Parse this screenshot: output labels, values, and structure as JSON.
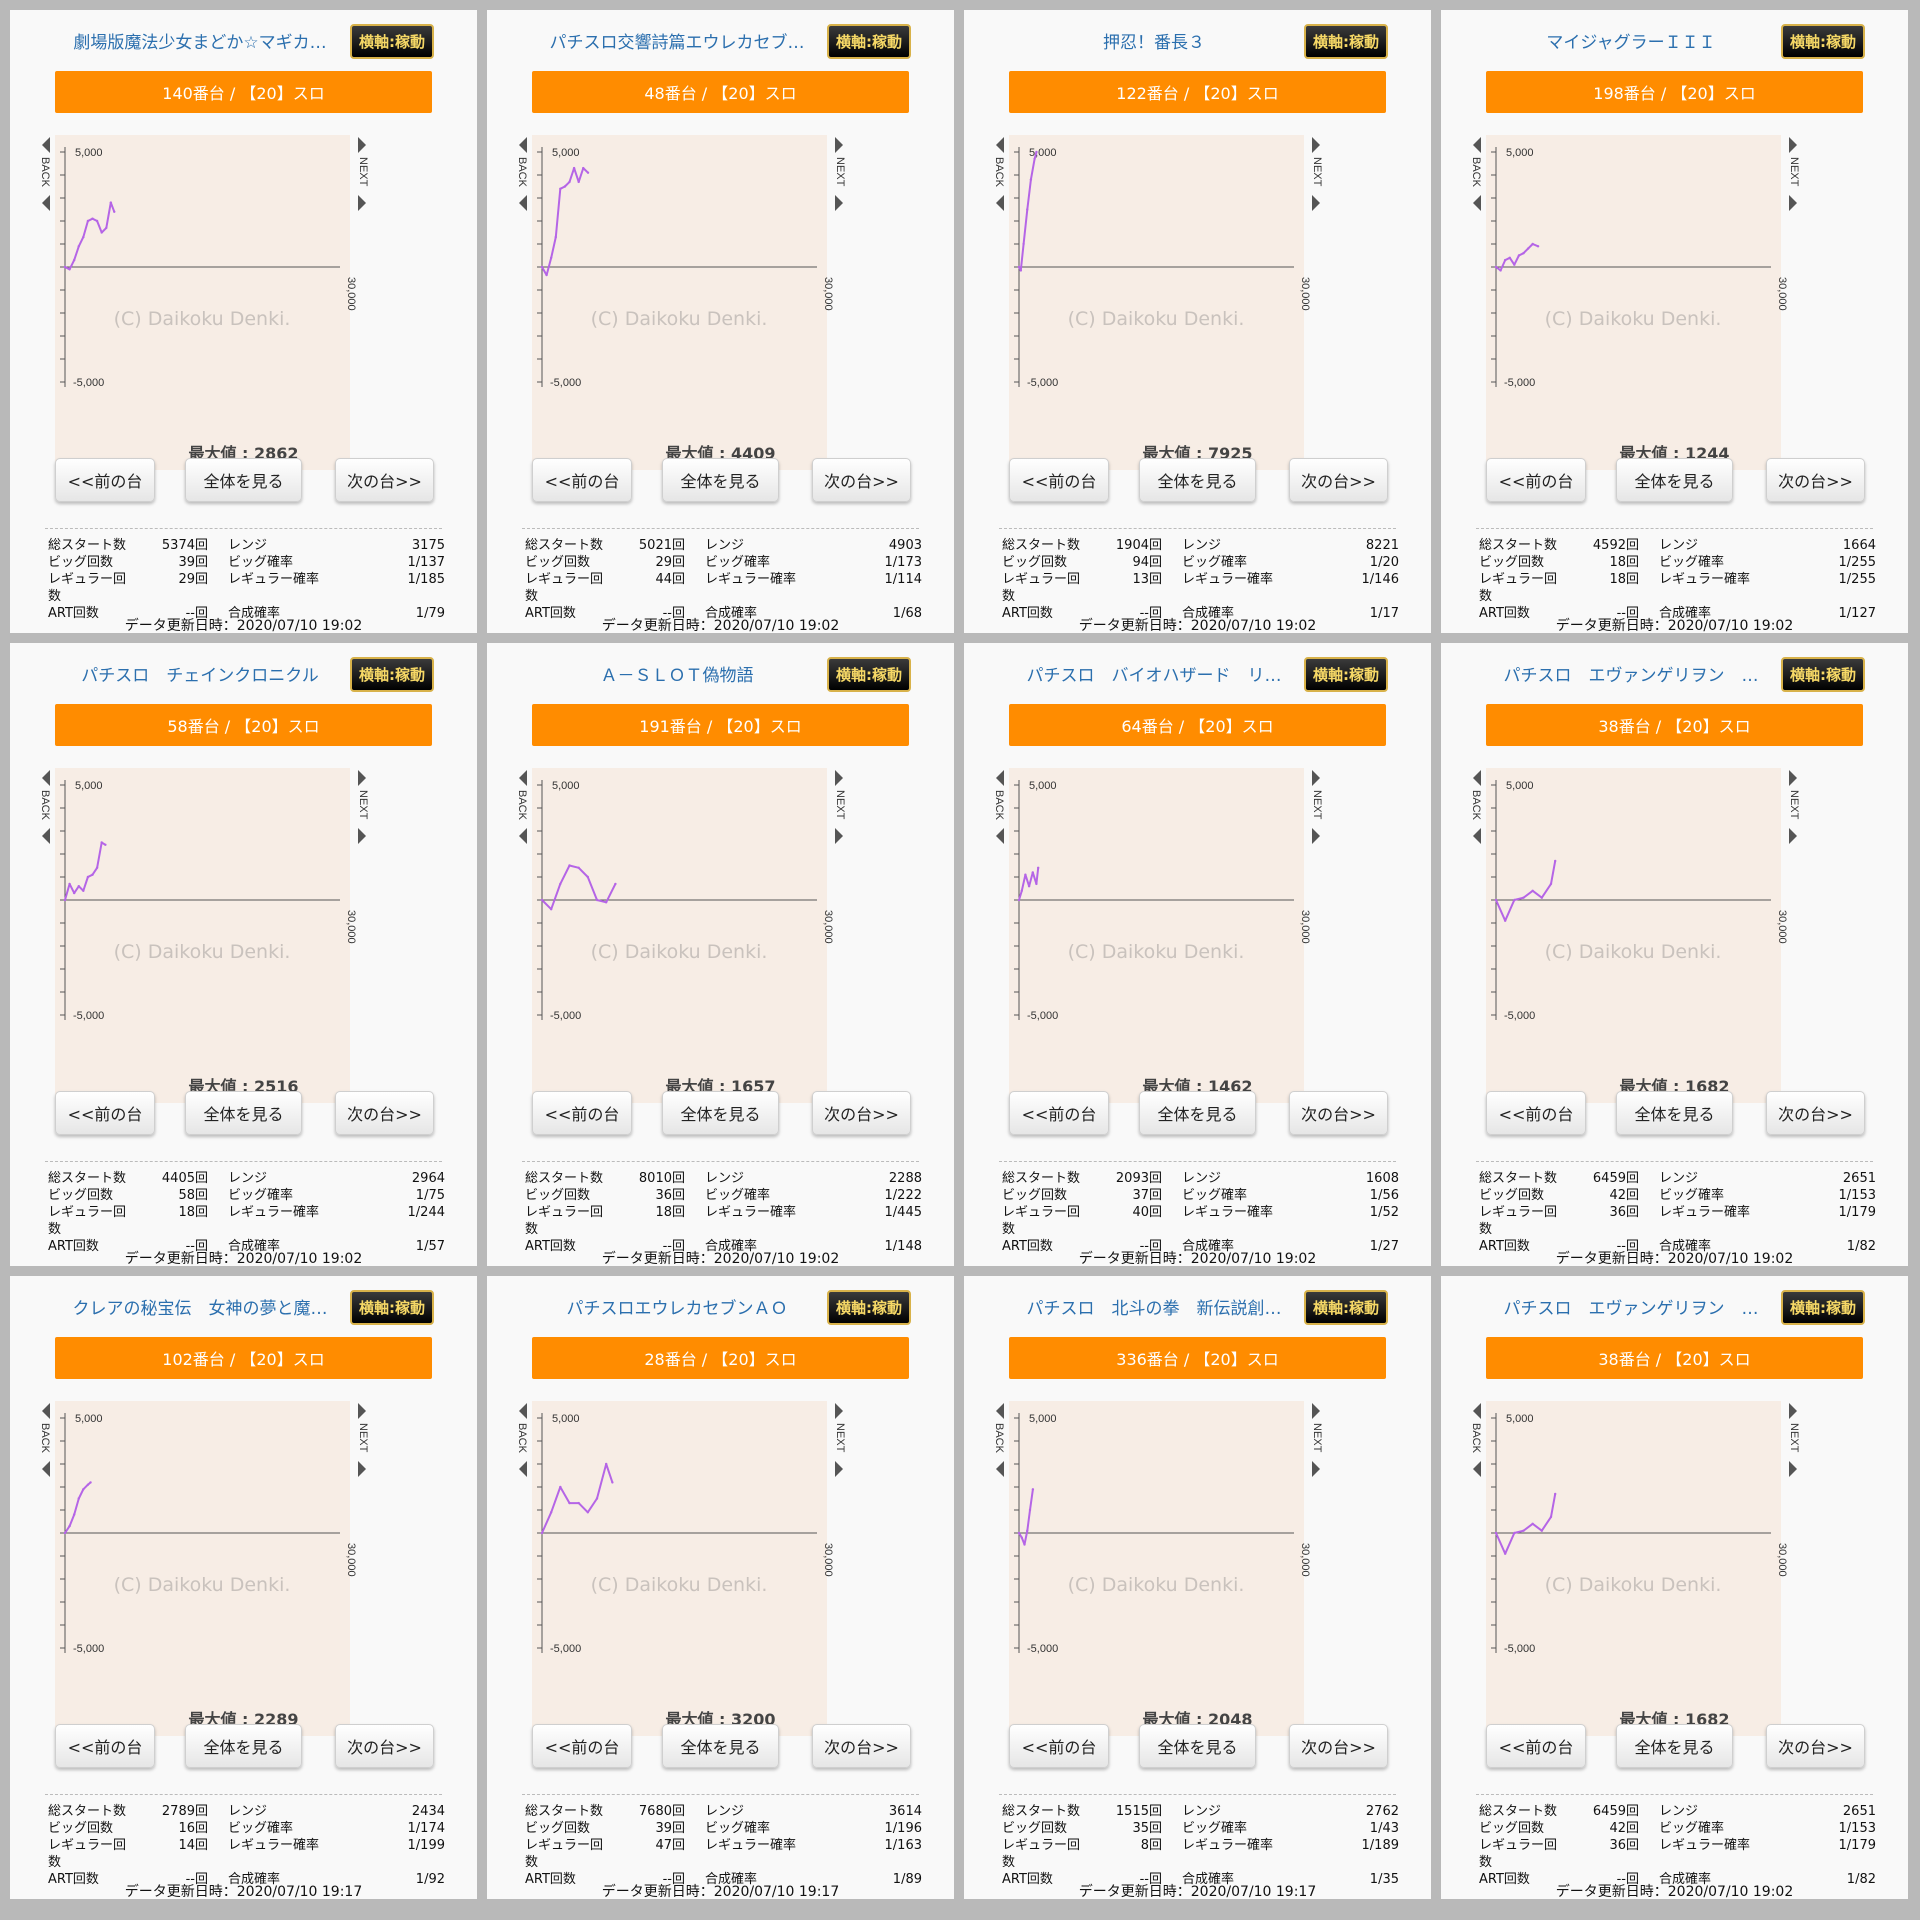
{
  "common": {
    "badge": "横軸:稼動",
    "prev_label": "<<前の台",
    "all_label": "全体を見る",
    "next_label": "次の台>>",
    "max_prefix": "最大値 : ",
    "back_label": "BACK",
    "next_side_label": "NEXT",
    "watermark": "(C) Daikoku Denki.",
    "stat_labels": {
      "total_start": "総スタート数",
      "big_count": "ビッグ回数",
      "reg_count": "レギュラー回数",
      "art_count": "ART回数",
      "range": "レンジ",
      "big_prob": "ビッグ確率",
      "reg_prob": "レギュラー確率",
      "combined_prob": "合成確率"
    },
    "updated_prefix": "データ更新日時：",
    "accent_color": "#ff8c00",
    "line_color": "#b565e6",
    "chart_bg": "#f7ede5"
  },
  "panels": [
    {
      "title": "劇場版魔法少女まどか☆マギカ…",
      "machine": "140番台 / 【20】スロ",
      "max_value": "2862",
      "stats": {
        "total_start": "5374回",
        "big_count": "39回",
        "reg_count": "29回",
        "art_count": "--回",
        "range": "3175",
        "big_prob": "1/137",
        "reg_prob": "1/185",
        "combined_prob": "1/79"
      },
      "updated": "2020/07/10 19:02"
    },
    {
      "title": "パチスロ交響詩篇エウレカセブ…",
      "machine": "48番台 / 【20】スロ",
      "max_value": "4409",
      "stats": {
        "total_start": "5021回",
        "big_count": "29回",
        "reg_count": "44回",
        "art_count": "--回",
        "range": "4903",
        "big_prob": "1/173",
        "reg_prob": "1/114",
        "combined_prob": "1/68"
      },
      "updated": "2020/07/10 19:02"
    },
    {
      "title": "押忍！番長３",
      "machine": "122番台 / 【20】スロ",
      "max_value": "7925",
      "stats": {
        "total_start": "1904回",
        "big_count": "94回",
        "reg_count": "13回",
        "art_count": "--回",
        "range": "8221",
        "big_prob": "1/20",
        "reg_prob": "1/146",
        "combined_prob": "1/17"
      },
      "updated": "2020/07/10 19:02"
    },
    {
      "title": "マイジャグラーＩＩＩ",
      "machine": "198番台 / 【20】スロ",
      "max_value": "1244",
      "stats": {
        "total_start": "4592回",
        "big_count": "18回",
        "reg_count": "18回",
        "art_count": "--回",
        "range": "1664",
        "big_prob": "1/255",
        "reg_prob": "1/255",
        "combined_prob": "1/127"
      },
      "updated": "2020/07/10 19:02"
    },
    {
      "title": "パチスロ　チェインクロニクル",
      "machine": "58番台 / 【20】スロ",
      "max_value": "2516",
      "stats": {
        "total_start": "4405回",
        "big_count": "58回",
        "reg_count": "18回",
        "art_count": "--回",
        "range": "2964",
        "big_prob": "1/75",
        "reg_prob": "1/244",
        "combined_prob": "1/57"
      },
      "updated": "2020/07/10 19:02"
    },
    {
      "title": "Ａ－ＳＬＯＴ偽物語",
      "machine": "191番台 / 【20】スロ",
      "max_value": "1657",
      "stats": {
        "total_start": "8010回",
        "big_count": "36回",
        "reg_count": "18回",
        "art_count": "--回",
        "range": "2288",
        "big_prob": "1/222",
        "reg_prob": "1/445",
        "combined_prob": "1/148"
      },
      "updated": "2020/07/10 19:02"
    },
    {
      "title": "パチスロ　バイオハザード　リ…",
      "machine": "64番台 / 【20】スロ",
      "max_value": "1462",
      "stats": {
        "total_start": "2093回",
        "big_count": "37回",
        "reg_count": "40回",
        "art_count": "--回",
        "range": "1608",
        "big_prob": "1/56",
        "reg_prob": "1/52",
        "combined_prob": "1/27"
      },
      "updated": "2020/07/10 19:02"
    },
    {
      "title": "パチスロ　エヴァンゲリヲン　…",
      "machine": "38番台 / 【20】スロ",
      "max_value": "1682",
      "stats": {
        "total_start": "6459回",
        "big_count": "42回",
        "reg_count": "36回",
        "art_count": "--回",
        "range": "2651",
        "big_prob": "1/153",
        "reg_prob": "1/179",
        "combined_prob": "1/82"
      },
      "updated": "2020/07/10 19:02"
    },
    {
      "title": "クレアの秘宝伝　女神の夢と魔…",
      "machine": "102番台 / 【20】スロ",
      "max_value": "2289",
      "stats": {
        "total_start": "2789回",
        "big_count": "16回",
        "reg_count": "14回",
        "art_count": "--回",
        "range": "2434",
        "big_prob": "1/174",
        "reg_prob": "1/199",
        "combined_prob": "1/92"
      },
      "updated": "2020/07/10 19:17"
    },
    {
      "title": "パチスロエウレカセブンＡＯ",
      "machine": "28番台 / 【20】スロ",
      "max_value": "3200",
      "stats": {
        "total_start": "7680回",
        "big_count": "39回",
        "reg_count": "47回",
        "art_count": "--回",
        "range": "3614",
        "big_prob": "1/196",
        "reg_prob": "1/163",
        "combined_prob": "1/89"
      },
      "updated": "2020/07/10 19:17"
    },
    {
      "title": "パチスロ　北斗の拳　新伝説創…",
      "machine": "336番台 / 【20】スロ",
      "max_value": "2048",
      "stats": {
        "total_start": "1515回",
        "big_count": "35回",
        "reg_count": "8回",
        "art_count": "--回",
        "range": "2762",
        "big_prob": "1/43",
        "reg_prob": "1/189",
        "combined_prob": "1/35"
      },
      "updated": "2020/07/10 19:17"
    },
    {
      "title": "パチスロ　エヴァンゲリヲン　…",
      "machine": "38番台 / 【20】スロ",
      "max_value": "1682",
      "stats": {
        "total_start": "6459回",
        "big_count": "42回",
        "reg_count": "36回",
        "art_count": "--回",
        "range": "2651",
        "big_prob": "1/153",
        "reg_prob": "1/179",
        "combined_prob": "1/82"
      },
      "updated": "2020/07/10 19:02"
    }
  ],
  "chart_data": [
    {
      "type": "line",
      "ytick_top": "5,000",
      "ytick_bottom": "-5,000",
      "xtick_end": "30,000",
      "ylim": [
        -5000,
        5000
      ],
      "xlim": [
        0,
        30000
      ],
      "x": [
        0,
        500,
        1000,
        1500,
        2000,
        2500,
        3000,
        3500,
        4000,
        4500,
        5000,
        5374
      ],
      "y": [
        0,
        -100,
        300,
        900,
        1300,
        2000,
        2100,
        2000,
        1500,
        1700,
        2800,
        2400
      ]
    },
    {
      "type": "line",
      "ytick_top": "5,000",
      "ytick_bottom": "-5,000",
      "xtick_end": "30,000",
      "ylim": [
        -5000,
        5000
      ],
      "xlim": [
        0,
        30000
      ],
      "x": [
        0,
        500,
        1000,
        1500,
        2000,
        2500,
        3000,
        3500,
        4000,
        4500,
        5021
      ],
      "y": [
        0,
        -350,
        400,
        1300,
        3400,
        3500,
        3700,
        4300,
        3700,
        4300,
        4100
      ]
    },
    {
      "type": "line",
      "ytick_top": "5,000",
      "ytick_bottom": "-5,000",
      "xtick_end": "30,000",
      "ylim": [
        -5000,
        5000
      ],
      "xlim": [
        0,
        30000
      ],
      "x": [
        0,
        200,
        500,
        900,
        1300,
        1700,
        1904
      ],
      "y": [
        0,
        -150,
        1000,
        2500,
        3800,
        4700,
        5000
      ]
    },
    {
      "type": "line",
      "ytick_top": "5,000",
      "ytick_bottom": "-5,000",
      "xtick_end": "30,000",
      "ylim": [
        -5000,
        5000
      ],
      "xlim": [
        0,
        30000
      ],
      "x": [
        0,
        500,
        1000,
        1500,
        2000,
        2500,
        3000,
        3500,
        4000,
        4592
      ],
      "y": [
        0,
        -150,
        300,
        400,
        100,
        500,
        600,
        800,
        1000,
        900
      ]
    },
    {
      "type": "line",
      "ytick_top": "5,000",
      "ytick_bottom": "-5,000",
      "xtick_end": "30,000",
      "ylim": [
        -5000,
        5000
      ],
      "xlim": [
        0,
        30000
      ],
      "x": [
        0,
        500,
        1000,
        1500,
        2000,
        2500,
        3000,
        3500,
        4000,
        4405
      ],
      "y": [
        0,
        700,
        300,
        600,
        400,
        1000,
        1100,
        1400,
        2500,
        2400
      ]
    },
    {
      "type": "line",
      "ytick_top": "5,000",
      "ytick_bottom": "-5,000",
      "xtick_end": "30,000",
      "ylim": [
        -5000,
        5000
      ],
      "xlim": [
        0,
        30000
      ],
      "x": [
        0,
        1000,
        2000,
        3000,
        4000,
        5000,
        6000,
        7000,
        8010
      ],
      "y": [
        0,
        -400,
        700,
        1500,
        1400,
        1000,
        0,
        -100,
        700
      ]
    },
    {
      "type": "line",
      "ytick_top": "5,000",
      "ytick_bottom": "-5,000",
      "xtick_end": "30,000",
      "ylim": [
        -5000,
        5000
      ],
      "xlim": [
        0,
        30000
      ],
      "x": [
        0,
        300,
        700,
        1100,
        1500,
        1900,
        2093
      ],
      "y": [
        0,
        400,
        1100,
        600,
        1200,
        700,
        1400
      ]
    },
    {
      "type": "line",
      "ytick_top": "5,000",
      "ytick_bottom": "-5,000",
      "xtick_end": "30,000",
      "ylim": [
        -5000,
        5000
      ],
      "xlim": [
        0,
        30000
      ],
      "x": [
        0,
        1000,
        2000,
        3000,
        4000,
        5000,
        6000,
        6459
      ],
      "y": [
        0,
        -900,
        0,
        100,
        400,
        100,
        700,
        1700
      ]
    },
    {
      "type": "line",
      "ytick_top": "5,000",
      "ytick_bottom": "-5,000",
      "xtick_end": "30,000",
      "ylim": [
        -5000,
        5000
      ],
      "xlim": [
        0,
        30000
      ],
      "x": [
        0,
        500,
        1000,
        1500,
        2000,
        2500,
        2789
      ],
      "y": [
        0,
        300,
        800,
        1500,
        1900,
        2100,
        2200
      ]
    },
    {
      "type": "line",
      "ytick_top": "5,000",
      "ytick_bottom": "-5,000",
      "xtick_end": "30,000",
      "ylim": [
        -5000,
        5000
      ],
      "xlim": [
        0,
        30000
      ],
      "x": [
        0,
        1000,
        2000,
        3000,
        4000,
        5000,
        6000,
        7000,
        7680
      ],
      "y": [
        0,
        900,
        2000,
        1300,
        1300,
        900,
        1500,
        3000,
        2200
      ]
    },
    {
      "type": "line",
      "ytick_top": "5,000",
      "ytick_bottom": "-5,000",
      "xtick_end": "30,000",
      "ylim": [
        -5000,
        5000
      ],
      "xlim": [
        0,
        30000
      ],
      "x": [
        0,
        300,
        600,
        900,
        1200,
        1515
      ],
      "y": [
        0,
        -200,
        -500,
        100,
        1000,
        1900
      ]
    },
    {
      "type": "line",
      "ytick_top": "5,000",
      "ytick_bottom": "-5,000",
      "xtick_end": "30,000",
      "ylim": [
        -5000,
        5000
      ],
      "xlim": [
        0,
        30000
      ],
      "x": [
        0,
        1000,
        2000,
        3000,
        4000,
        5000,
        6000,
        6459
      ],
      "y": [
        0,
        -900,
        0,
        100,
        400,
        100,
        700,
        1700
      ]
    }
  ]
}
